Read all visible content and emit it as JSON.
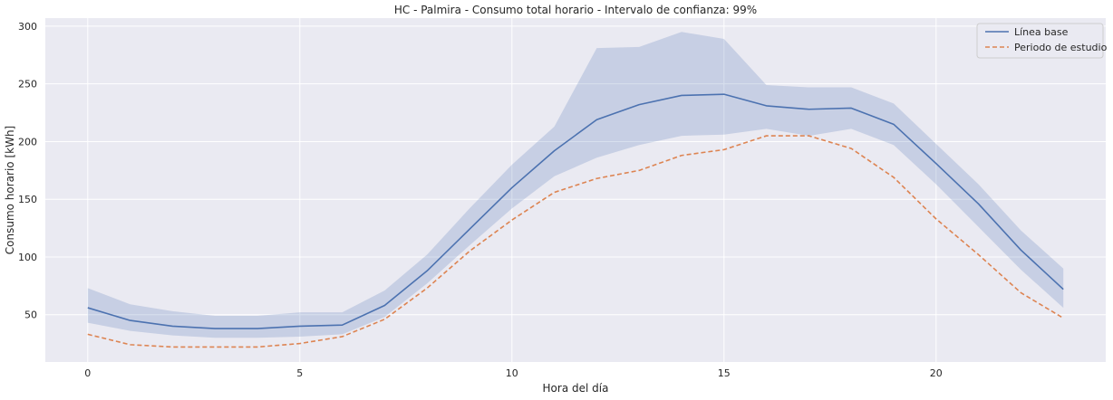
{
  "chart_data": {
    "type": "line",
    "title": "HC - Palmira - Consumo total horario - Intervalo de confianza: 99%",
    "xlabel": "Hora del día",
    "ylabel": "Consumo horario [kWh]",
    "xlim": [
      -1.0,
      24.0
    ],
    "ylim": [
      9,
      307
    ],
    "x_ticks": [
      0,
      5,
      10,
      15,
      20
    ],
    "y_ticks": [
      50,
      100,
      150,
      200,
      250,
      300
    ],
    "grid": true,
    "legend_position": "top-right",
    "x": [
      0,
      1,
      2,
      3,
      4,
      5,
      6,
      7,
      8,
      9,
      10,
      11,
      12,
      13,
      14,
      15,
      16,
      17,
      18,
      19,
      20,
      21,
      22,
      23
    ],
    "series": [
      {
        "name": "Línea base",
        "color": "#4c72b0",
        "style": "solid",
        "values": [
          56,
          45,
          40,
          38,
          38,
          40,
          41,
          58,
          88,
          124,
          160,
          192,
          219,
          232,
          240,
          241,
          231,
          228,
          229,
          215,
          181,
          146,
          106,
          72
        ],
        "ci_lower": [
          43,
          36,
          32,
          30,
          30,
          31,
          33,
          48,
          77,
          110,
          142,
          170,
          186,
          197,
          205,
          206,
          211,
          205,
          211,
          197,
          163,
          126,
          89,
          56
        ],
        "ci_upper": [
          73,
          59,
          53,
          49,
          49,
          52,
          52,
          71,
          102,
          142,
          180,
          213,
          281,
          282,
          295,
          289,
          249,
          247,
          247,
          233,
          198,
          163,
          123,
          90
        ],
        "ci_color": "#4c72b0"
      },
      {
        "name": "Periodo de estudio",
        "color": "#dd8452",
        "style": "dashed",
        "values": [
          33,
          24,
          22,
          22,
          22,
          25,
          31,
          46,
          73,
          105,
          132,
          156,
          168,
          175,
          188,
          193,
          205,
          205,
          194,
          169,
          133,
          102,
          69,
          47
        ]
      }
    ]
  }
}
